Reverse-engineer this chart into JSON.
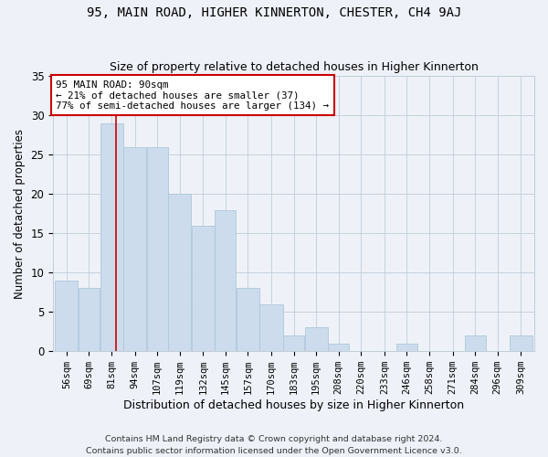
{
  "title": "95, MAIN ROAD, HIGHER KINNERTON, CHESTER, CH4 9AJ",
  "subtitle": "Size of property relative to detached houses in Higher Kinnerton",
  "xlabel": "Distribution of detached houses by size in Higher Kinnerton",
  "ylabel": "Number of detached properties",
  "bar_color": "#ccdcec",
  "bar_edge_color": "#aec8dc",
  "vline_x": 90,
  "vline_color": "#cc0000",
  "categories": [
    "56sqm",
    "69sqm",
    "81sqm",
    "94sqm",
    "107sqm",
    "119sqm",
    "132sqm",
    "145sqm",
    "157sqm",
    "170sqm",
    "183sqm",
    "195sqm",
    "208sqm",
    "220sqm",
    "233sqm",
    "246sqm",
    "258sqm",
    "271sqm",
    "284sqm",
    "296sqm",
    "309sqm"
  ],
  "bar_edges": [
    56,
    69,
    81,
    94,
    107,
    119,
    132,
    145,
    157,
    170,
    183,
    195,
    208,
    220,
    233,
    246,
    258,
    271,
    284,
    296,
    309
  ],
  "values": [
    9,
    8,
    29,
    26,
    26,
    20,
    16,
    18,
    8,
    6,
    2,
    3,
    1,
    0,
    0,
    1,
    0,
    0,
    2,
    0,
    2
  ],
  "ylim": [
    0,
    35
  ],
  "yticks": [
    0,
    5,
    10,
    15,
    20,
    25,
    30,
    35
  ],
  "annotation_text": "95 MAIN ROAD: 90sqm\n← 21% of detached houses are smaller (37)\n77% of semi-detached houses are larger (134) →",
  "annotation_box_facecolor": "#ffffff",
  "annotation_box_edgecolor": "#cc0000",
  "footer": "Contains HM Land Registry data © Crown copyright and database right 2024.\nContains public sector information licensed under the Open Government Licence v3.0.",
  "background_color": "#eef2f8"
}
